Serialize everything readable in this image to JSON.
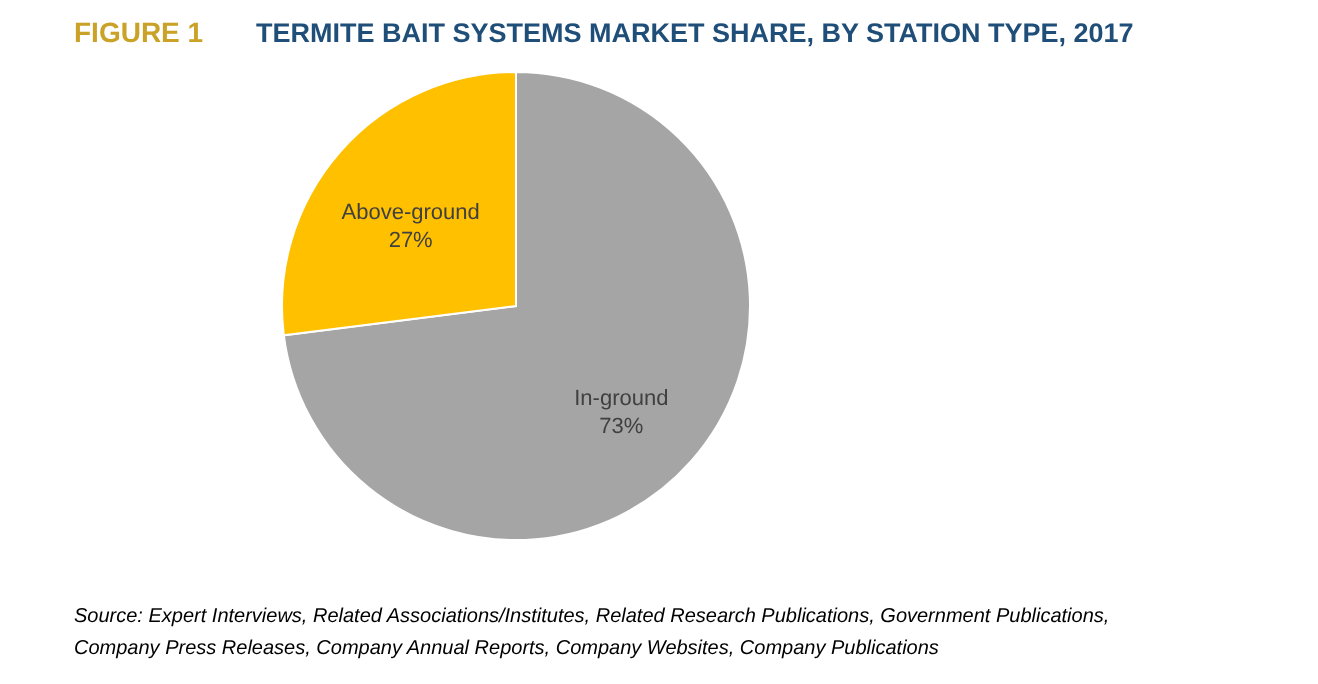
{
  "chart_data": {
    "type": "pie",
    "title": "FIGURE 1",
    "subtitle": "TERMITE BAIT SYSTEMS MARKET SHARE, BY STATION TYPE, 2017",
    "categories": [
      "In-ground",
      "Above-ground"
    ],
    "values": [
      73,
      27
    ],
    "colors": [
      "#a5a5a5",
      "#ffc000"
    ],
    "value_labels": [
      "73%",
      "27%"
    ],
    "annotations": [
      "Source: Expert Interviews, Related Associations/Institutes, Related Research Publications, Government Publications, Company Press Releases, Company Annual Reports, Company Websites, Company Publications"
    ]
  }
}
